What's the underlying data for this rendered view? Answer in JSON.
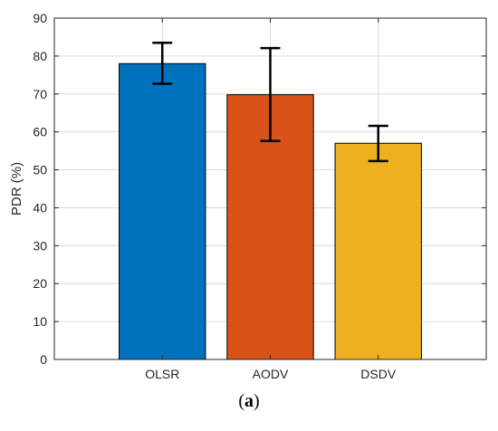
{
  "chart_data": {
    "type": "bar",
    "categories": [
      "OLSR",
      "AODV",
      "DSDV"
    ],
    "values": [
      78,
      69.8,
      57
    ],
    "error_low": [
      72.7,
      57.6,
      52.3
    ],
    "error_high": [
      83.5,
      82.1,
      61.6
    ],
    "bar_colors": [
      "#0072BD",
      "#D95319",
      "#EDB120"
    ],
    "title": "",
    "xlabel": "",
    "ylabel": "PDR (%)",
    "ylim": [
      0,
      90
    ],
    "yticks": [
      0,
      10,
      20,
      30,
      40,
      50,
      60,
      70,
      80,
      90
    ],
    "grid": true,
    "legend": "none"
  },
  "caption": {
    "open": "(",
    "letter": "a",
    "close": ")"
  }
}
